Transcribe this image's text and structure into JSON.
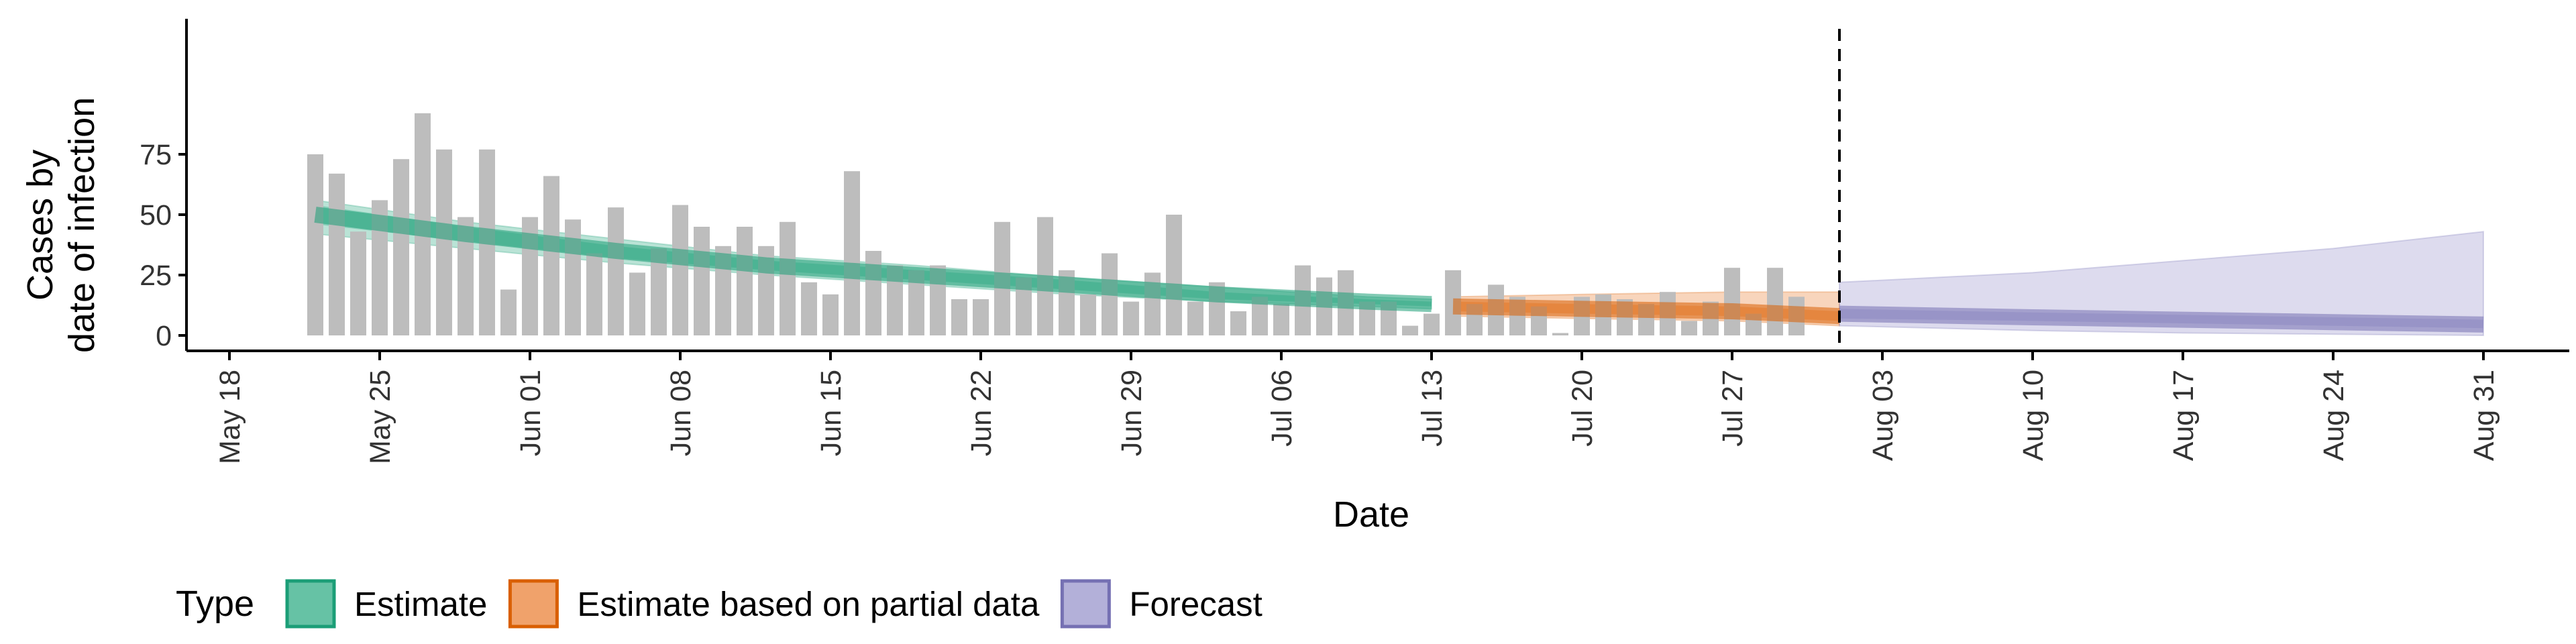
{
  "chart_data": {
    "type": "bar",
    "xlabel": "Date",
    "ylabel_lines": [
      "Cases by",
      "date of infection"
    ],
    "ylim": [
      0,
      97
    ],
    "y_ticks": [
      0,
      25,
      50,
      75
    ],
    "x_ticks": [
      {
        "date": "2020-05-18",
        "label": "May 18"
      },
      {
        "date": "2020-05-25",
        "label": "May 25"
      },
      {
        "date": "2020-06-01",
        "label": "Jun 01"
      },
      {
        "date": "2020-06-08",
        "label": "Jun 08"
      },
      {
        "date": "2020-06-15",
        "label": "Jun 15"
      },
      {
        "date": "2020-06-22",
        "label": "Jun 22"
      },
      {
        "date": "2020-06-29",
        "label": "Jun 29"
      },
      {
        "date": "2020-07-06",
        "label": "Jul 06"
      },
      {
        "date": "2020-07-13",
        "label": "Jul 13"
      },
      {
        "date": "2020-07-20",
        "label": "Jul 20"
      },
      {
        "date": "2020-07-27",
        "label": "Jul 27"
      },
      {
        "date": "2020-08-03",
        "label": "Aug 03"
      },
      {
        "date": "2020-08-10",
        "label": "Aug 10"
      },
      {
        "date": "2020-08-17",
        "label": "Aug 17"
      },
      {
        "date": "2020-08-24",
        "label": "Aug 24"
      },
      {
        "date": "2020-08-31",
        "label": "Aug 31"
      }
    ],
    "x_range": [
      "2020-05-16",
      "2020-09-04"
    ],
    "reported_cases": {
      "start_date": "2020-05-22",
      "values": [
        75,
        67,
        43,
        56,
        73,
        92,
        77,
        49,
        77,
        19,
        49,
        66,
        48,
        34,
        53,
        26,
        36,
        54,
        45,
        37,
        45,
        37,
        47,
        22,
        17,
        68,
        35,
        29,
        27,
        29,
        15,
        15,
        47,
        24,
        49,
        27,
        17,
        34,
        14,
        26,
        50,
        14,
        22,
        10,
        16,
        13,
        29,
        24,
        27,
        14,
        14,
        4,
        9,
        27,
        13,
        21,
        16,
        12,
        1,
        16,
        17,
        15,
        13,
        18,
        6,
        14,
        28,
        9,
        28,
        16
      ]
    },
    "vline_date": "2020-08-01",
    "series": [
      {
        "name": "Estimate",
        "color": "#1b9e77",
        "fill": "#66c2a5",
        "dates": [
          "2020-05-22",
          "2020-05-29",
          "2020-06-05",
          "2020-06-12",
          "2020-06-19",
          "2020-06-26",
          "2020-07-03",
          "2020-07-10",
          "2020-07-13"
        ],
        "median": [
          50,
          42,
          35,
          29,
          25,
          21,
          17,
          14,
          13
        ],
        "inner_lo": [
          46,
          39,
          32,
          27,
          23,
          19,
          15,
          13,
          12
        ],
        "inner_hi": [
          54,
          45,
          37,
          31,
          27,
          23,
          18,
          15,
          14
        ],
        "outer_lo": [
          42,
          36,
          30,
          25,
          21,
          17,
          14,
          12,
          11
        ],
        "outer_hi": [
          56,
          47,
          40,
          33,
          29,
          24,
          20,
          16,
          15
        ]
      },
      {
        "name": "Estimate based on partial data",
        "color": "#d95f02",
        "fill": "#f0a26b",
        "dates": [
          "2020-07-14",
          "2020-07-20",
          "2020-07-27",
          "2020-08-01"
        ],
        "median": [
          12,
          11,
          10,
          8
        ],
        "inner_lo": [
          10,
          9,
          8,
          6
        ],
        "inner_hi": [
          14,
          13,
          12,
          10
        ],
        "outer_lo": [
          8,
          7,
          6,
          4
        ],
        "outer_hi": [
          16,
          17,
          18,
          18
        ]
      },
      {
        "name": "Forecast",
        "color": "#7570b3",
        "fill": "#b3b0d9",
        "dates": [
          "2020-08-01",
          "2020-08-10",
          "2020-08-17",
          "2020-08-24",
          "2020-08-31"
        ],
        "median": [
          9,
          7.5,
          6.5,
          5.5,
          4.5
        ],
        "inner_lo": [
          7,
          6,
          5,
          4,
          3
        ],
        "inner_hi": [
          11,
          9.5,
          8.5,
          7.5,
          6.5
        ],
        "outer_lo": [
          4,
          2,
          1,
          0.5,
          0
        ],
        "outer_hi": [
          22,
          26,
          31,
          36,
          43
        ]
      }
    ],
    "legend": {
      "title": "Type",
      "position": "bottom",
      "items": [
        "Estimate",
        "Estimate based on partial data",
        "Forecast"
      ]
    }
  }
}
